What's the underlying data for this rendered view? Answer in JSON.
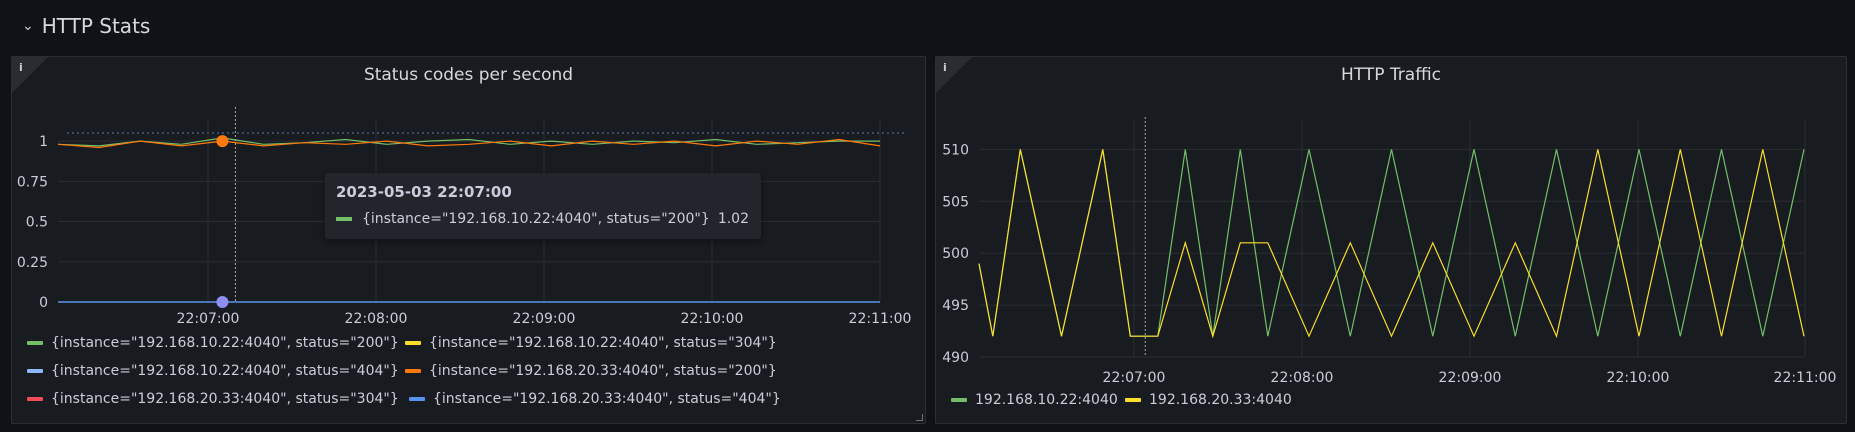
{
  "row": {
    "title": "HTTP Stats",
    "chevron_icon": "chevron-down-icon"
  },
  "colors": {
    "green": "#73bf69",
    "yellow": "#fade2a",
    "light_blue": "#8ab8ff",
    "orange": "#ff780a",
    "red": "#f2495c",
    "blue": "#5794f2",
    "purple_point": "#8f8cf2"
  },
  "panel1": {
    "title": "Status codes per second",
    "info_icon": "info-icon",
    "y_ticks": [
      "1",
      "0.75",
      "0.5",
      "0.25",
      "0"
    ],
    "x_ticks": [
      "22:07:00",
      "22:08:00",
      "22:09:00",
      "22:10:00",
      "22:11:00"
    ],
    "tooltip": {
      "time": "2023-05-03 22:07:00",
      "series": "{instance=\"192.168.10.22:4040\", status=\"200\"}",
      "value": "1.02"
    },
    "legend": [
      {
        "label": "{instance=\"192.168.10.22:4040\", status=\"200\"}",
        "color": "#73bf69"
      },
      {
        "label": "{instance=\"192.168.10.22:4040\", status=\"304\"}",
        "color": "#fade2a"
      },
      {
        "label": "{instance=\"192.168.10.22:4040\", status=\"404\"}",
        "color": "#8ab8ff"
      },
      {
        "label": "{instance=\"192.168.20.33:4040\", status=\"200\"}",
        "color": "#ff780a"
      },
      {
        "label": "{instance=\"192.168.20.33:4040\", status=\"304\"}",
        "color": "#f2495c"
      },
      {
        "label": "{instance=\"192.168.20.33:4040\", status=\"404\"}",
        "color": "#5794f2"
      }
    ]
  },
  "panel2": {
    "title": "HTTP Traffic",
    "info_icon": "info-icon",
    "y_ticks": [
      "510",
      "505",
      "500",
      "495",
      "490"
    ],
    "x_ticks": [
      "22:07:00",
      "22:08:00",
      "22:09:00",
      "22:10:00",
      "22:11:00"
    ],
    "legend": [
      {
        "label": "192.168.10.22:4040",
        "color": "#73bf69"
      },
      {
        "label": "192.168.20.33:4040",
        "color": "#fade2a"
      }
    ]
  },
  "chart_data": [
    {
      "type": "line",
      "title": "Status codes per second",
      "ylim": [
        0,
        1.1
      ],
      "x": [
        "22:06:00",
        "22:06:15",
        "22:06:30",
        "22:06:45",
        "22:07:00",
        "22:07:15",
        "22:07:30",
        "22:07:45",
        "22:08:00",
        "22:08:15",
        "22:08:30",
        "22:08:45",
        "22:09:00",
        "22:09:15",
        "22:09:30",
        "22:09:45",
        "22:10:00",
        "22:10:15",
        "22:10:30",
        "22:10:45",
        "22:11:00"
      ],
      "series": [
        {
          "name": "{instance=\"192.168.10.22:4040\", status=\"200\"}",
          "values": [
            0.98,
            0.97,
            1.0,
            0.98,
            1.02,
            0.98,
            0.99,
            1.01,
            0.98,
            1.0,
            1.01,
            0.98,
            1.0,
            0.98,
            1.0,
            0.99,
            1.01,
            0.98,
            0.99,
            1.0,
            1.0
          ]
        },
        {
          "name": "{instance=\"192.168.20.33:4040\", status=\"200\"}",
          "values": [
            0.98,
            0.96,
            1.0,
            0.97,
            1.0,
            0.97,
            0.99,
            0.98,
            1.0,
            0.97,
            0.98,
            1.0,
            0.97,
            1.0,
            0.98,
            1.0,
            0.97,
            1.0,
            0.98,
            1.01,
            0.97
          ]
        },
        {
          "name": "{instance=\"192.168.10.22:4040\", status=\"404\"}",
          "values": [
            0,
            0,
            0,
            0,
            0,
            0,
            0,
            0,
            0,
            0,
            0,
            0,
            0,
            0,
            0,
            0,
            0,
            0,
            0,
            0,
            0
          ]
        },
        {
          "name": "{instance=\"192.168.20.33:4040\", status=\"404\"}",
          "values": [
            0,
            0,
            0,
            0,
            0,
            0,
            0,
            0,
            0,
            0,
            0,
            0,
            0,
            0,
            0,
            0,
            0,
            0,
            0,
            0,
            0
          ]
        }
      ]
    },
    {
      "type": "line",
      "title": "HTTP Traffic",
      "ylim": [
        490,
        511
      ],
      "x": [
        "22:06:00",
        "22:06:05",
        "22:06:15",
        "22:06:30",
        "22:06:45",
        "22:06:55",
        "22:07:05",
        "22:07:15",
        "22:07:25",
        "22:07:35",
        "22:07:45",
        "22:08:00",
        "22:08:15",
        "22:08:30",
        "22:08:45",
        "22:09:00",
        "22:09:15",
        "22:09:30",
        "22:09:45",
        "22:10:00",
        "22:10:15",
        "22:10:30",
        "22:10:45",
        "22:11:00"
      ],
      "series": [
        {
          "name": "192.168.10.22:4040",
          "values": [
            499,
            492,
            510,
            492,
            510,
            492,
            492,
            510,
            492,
            510,
            492,
            510,
            492,
            510,
            492,
            510,
            492,
            510,
            492,
            510,
            492,
            510,
            492,
            510
          ]
        },
        {
          "name": "192.168.20.33:4040",
          "values": [
            499,
            492,
            510,
            492,
            510,
            492,
            492,
            501,
            492,
            501,
            501,
            492,
            501,
            492,
            501,
            492,
            501,
            492,
            510,
            492,
            510,
            492,
            510,
            492
          ]
        }
      ]
    }
  ]
}
